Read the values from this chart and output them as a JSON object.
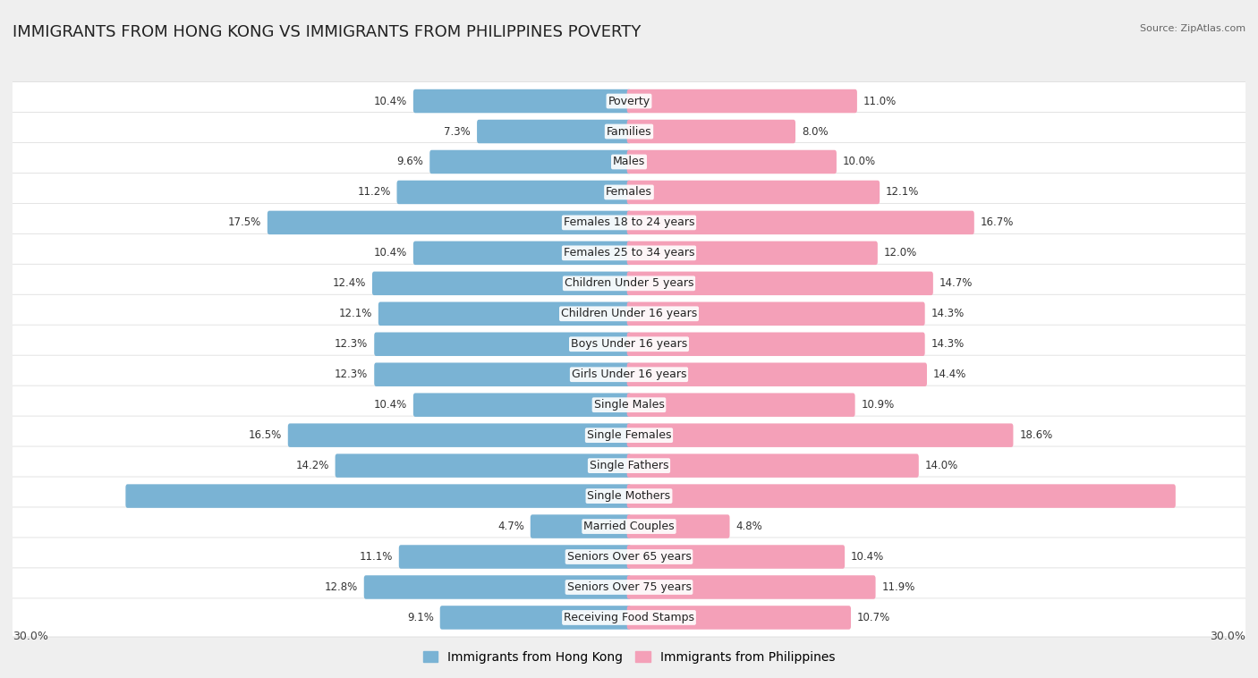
{
  "title": "IMMIGRANTS FROM HONG KONG VS IMMIGRANTS FROM PHILIPPINES POVERTY",
  "source": "Source: ZipAtlas.com",
  "categories": [
    "Poverty",
    "Families",
    "Males",
    "Females",
    "Females 18 to 24 years",
    "Females 25 to 34 years",
    "Children Under 5 years",
    "Children Under 16 years",
    "Boys Under 16 years",
    "Girls Under 16 years",
    "Single Males",
    "Single Females",
    "Single Fathers",
    "Single Mothers",
    "Married Couples",
    "Seniors Over 65 years",
    "Seniors Over 75 years",
    "Receiving Food Stamps"
  ],
  "hk_values": [
    10.4,
    7.3,
    9.6,
    11.2,
    17.5,
    10.4,
    12.4,
    12.1,
    12.3,
    12.3,
    10.4,
    16.5,
    14.2,
    24.4,
    4.7,
    11.1,
    12.8,
    9.1
  ],
  "ph_values": [
    11.0,
    8.0,
    10.0,
    12.1,
    16.7,
    12.0,
    14.7,
    14.3,
    14.3,
    14.4,
    10.9,
    18.6,
    14.0,
    26.5,
    4.8,
    10.4,
    11.9,
    10.7
  ],
  "hk_color": "#7ab3d4",
  "ph_color": "#f4a0b8",
  "hk_label": "Immigrants from Hong Kong",
  "ph_label": "Immigrants from Philippines",
  "axis_max": 30.0,
  "bg_color": "#efefef",
  "title_fontsize": 13,
  "label_fontsize": 9,
  "value_fontsize": 8.5,
  "legend_fontsize": 10,
  "inside_label_threshold": 20.0
}
